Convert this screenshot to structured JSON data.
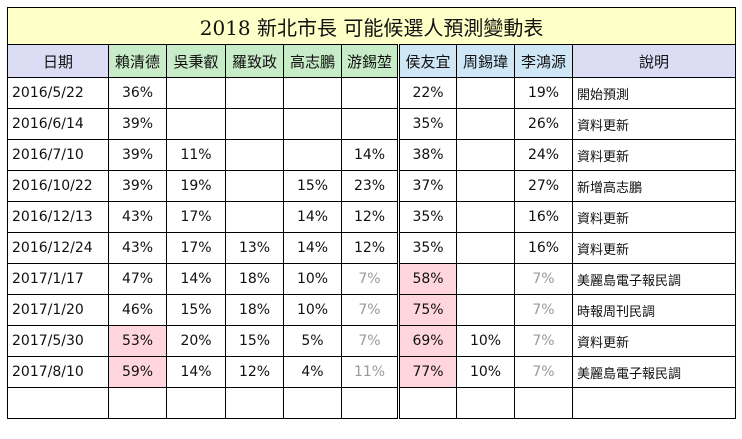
{
  "title": "2018  新北市長  可能候選人預測變動表",
  "headers": [
    "日期",
    "賴清德",
    "吳秉叡",
    "羅致政",
    "高志鵬",
    "游錫堃",
    "侯友宜",
    "周錫瑋",
    "李鴻源",
    "說明"
  ],
  "rows": [
    {
      "date": "2016/5/22",
      "v": [
        "36%",
        "",
        "",
        "",
        "",
        "22%",
        "",
        "19%"
      ],
      "note": "開始預測"
    },
    {
      "date": "2016/6/14",
      "v": [
        "39%",
        "",
        "",
        "",
        "",
        "35%",
        "",
        "26%"
      ],
      "note": "資料更新"
    },
    {
      "date": "2016/7/10",
      "v": [
        "39%",
        "11%",
        "",
        "",
        "14%",
        "38%",
        "",
        "24%"
      ],
      "note": "資料更新"
    },
    {
      "date": "2016/10/22",
      "v": [
        "39%",
        "19%",
        "",
        "15%",
        "23%",
        "37%",
        "",
        "27%"
      ],
      "note": "新增高志鵬"
    },
    {
      "date": "2016/12/13",
      "v": [
        "43%",
        "17%",
        "",
        "14%",
        "12%",
        "35%",
        "",
        "16%"
      ],
      "note": "資料更新"
    },
    {
      "date": "2016/12/24",
      "v": [
        "43%",
        "17%",
        "13%",
        "14%",
        "12%",
        "35%",
        "",
        "16%"
      ],
      "note": "資料更新"
    },
    {
      "date": "2017/1/17",
      "v": [
        "47%",
        "14%",
        "18%",
        "10%",
        "7%",
        "58%",
        "",
        "7%"
      ],
      "note": "美麗島電子報民調"
    },
    {
      "date": "2017/1/20",
      "v": [
        "46%",
        "15%",
        "18%",
        "10%",
        "7%",
        "75%",
        "",
        "7%"
      ],
      "note": "時報周刊民調"
    },
    {
      "date": "2017/5/30",
      "v": [
        "53%",
        "20%",
        "15%",
        "5%",
        "7%",
        "69%",
        "10%",
        "7%"
      ],
      "note": "資料更新"
    },
    {
      "date": "2017/8/10",
      "v": [
        "59%",
        "14%",
        "12%",
        "4%",
        "11%",
        "77%",
        "10%",
        "7%"
      ],
      "note": "美麗島電子報民調"
    },
    {
      "date": "",
      "v": [
        "",
        "",
        "",
        "",
        "",
        "",
        "",
        ""
      ],
      "note": ""
    }
  ],
  "highlighted_cells": [
    [
      6,
      5
    ],
    [
      7,
      5
    ],
    [
      8,
      0
    ],
    [
      8,
      5
    ],
    [
      9,
      0
    ],
    [
      9,
      5
    ]
  ],
  "dimmed_cells": [
    [
      6,
      4
    ],
    [
      6,
      7
    ],
    [
      7,
      4
    ],
    [
      7,
      7
    ],
    [
      8,
      4
    ],
    [
      8,
      7
    ],
    [
      9,
      4
    ],
    [
      9,
      7
    ]
  ],
  "colors": {
    "title_bg": "#ffffc8",
    "dpp_header_bg": "#c9ecc8",
    "kmt_header_bg": "#cfe6f7",
    "other_header_bg": "#dcdcf5",
    "highlight_bg": "#ffd6dc",
    "dim_text": "#9a9a9a"
  }
}
